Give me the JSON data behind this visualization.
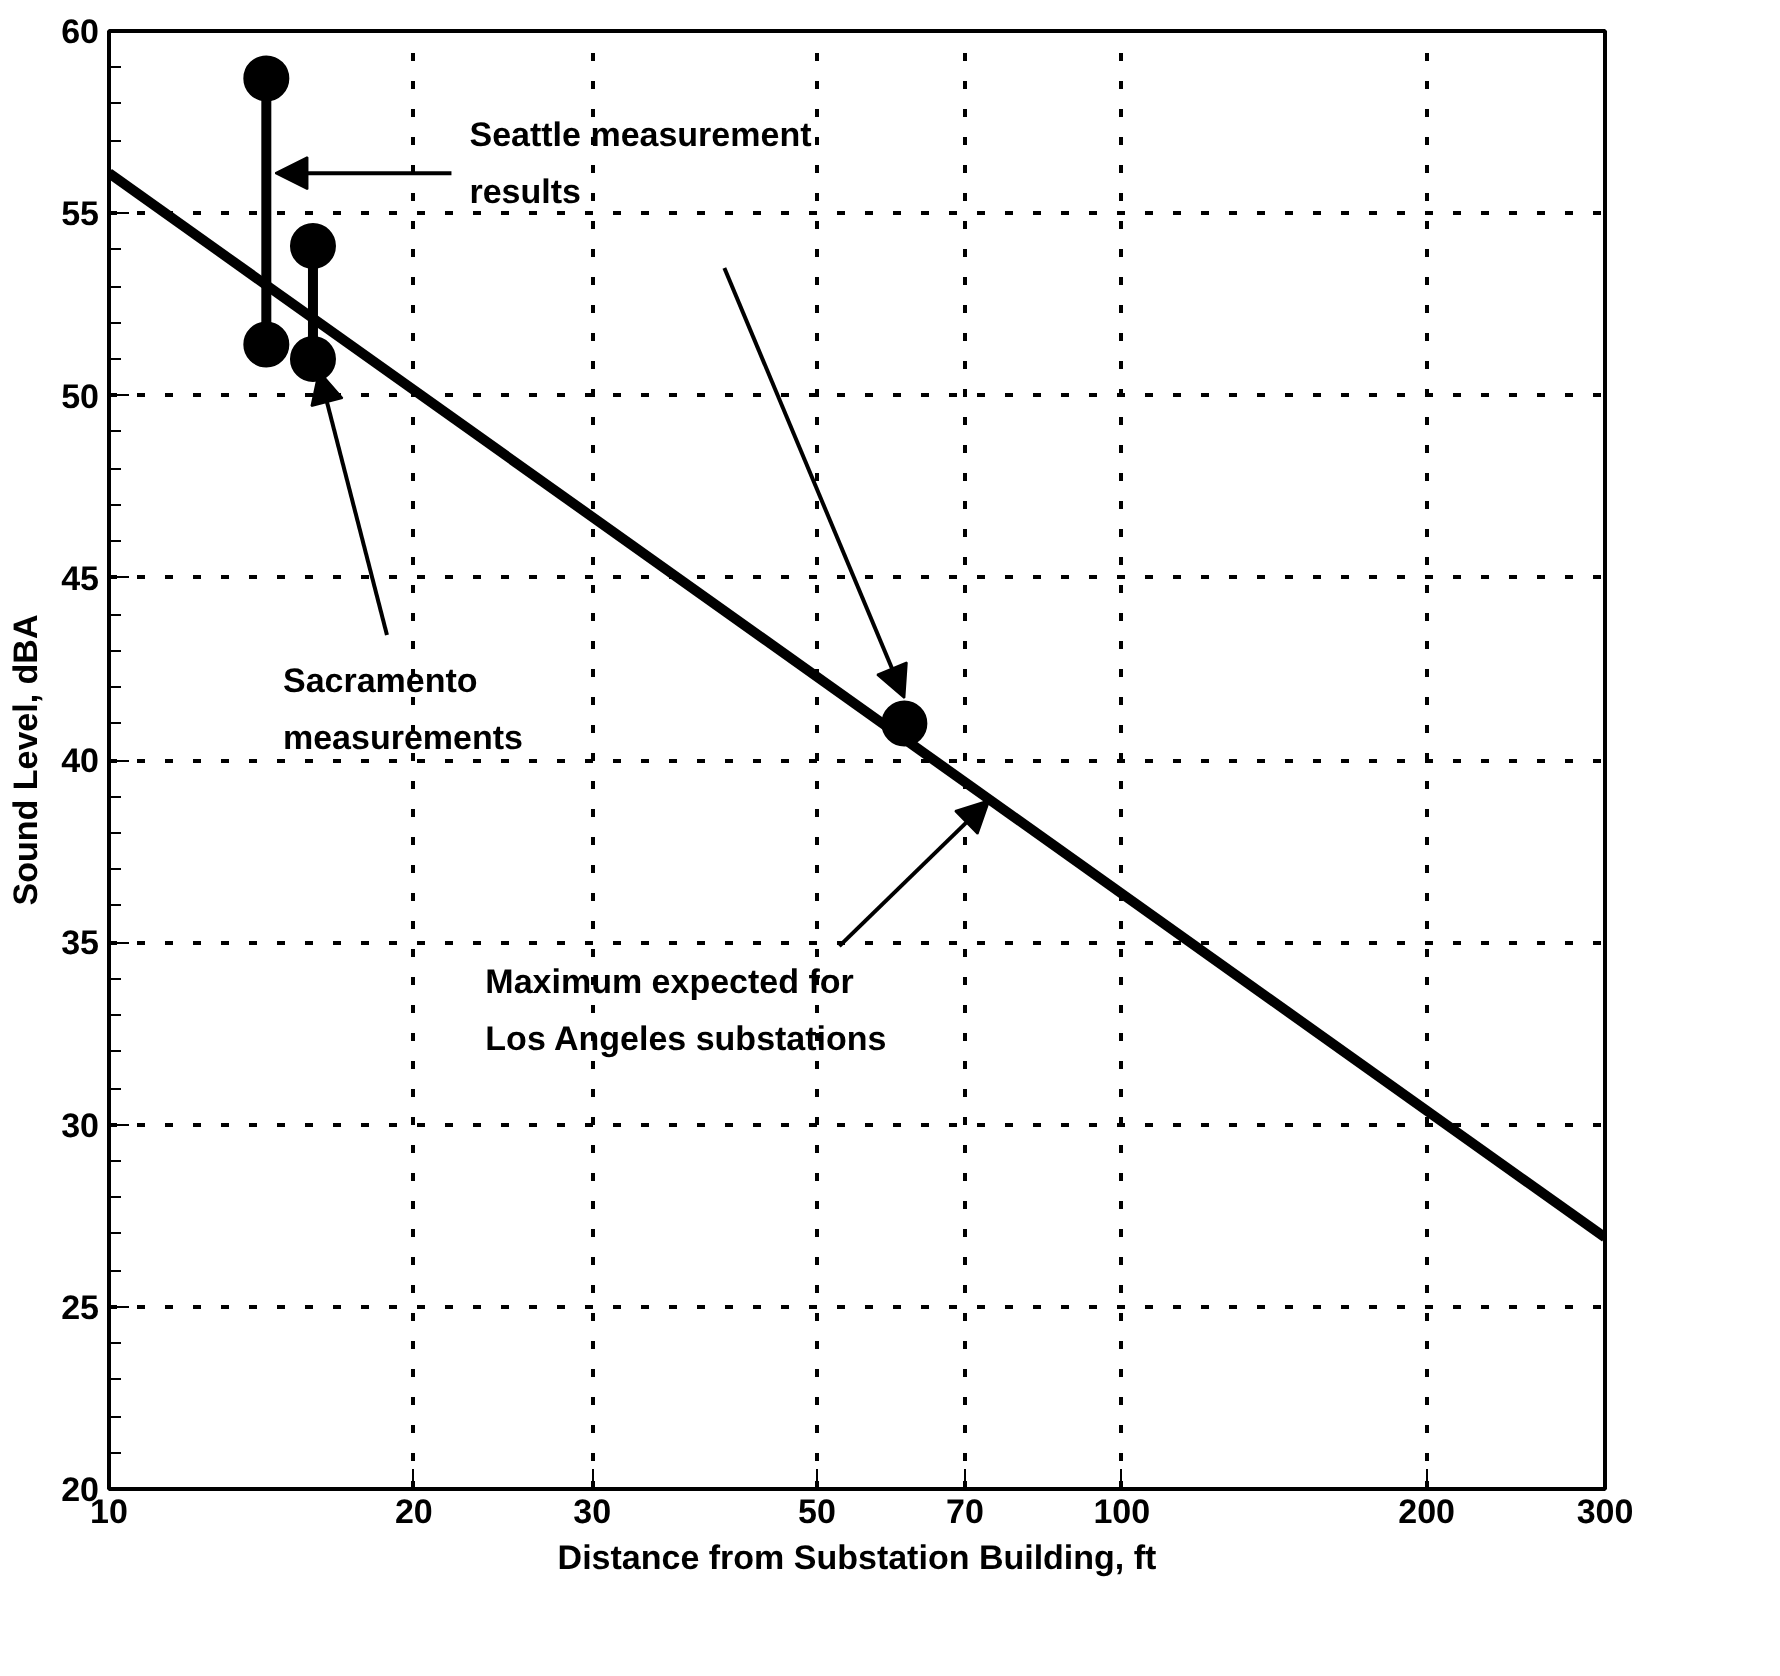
{
  "chart_data": {
    "type": "line",
    "xlabel": "Distance from Substation Building, ft",
    "ylabel": "Sound Level, dBA",
    "log": "x",
    "grid": true,
    "line_style": "solid",
    "xlim": [
      10,
      300
    ],
    "xticks": [
      10,
      20,
      30,
      50,
      70,
      100,
      200,
      300
    ],
    "ylim": [
      20,
      60
    ],
    "yticks": [
      20,
      25,
      30,
      35,
      40,
      45,
      50,
      55,
      60
    ],
    "series": [
      {
        "color": "#000000",
        "marker": "none",
        "x": [
          10,
          300
        ],
        "values": [
          56.1,
          26.9
        ]
      },
      {
        "type": "line",
        "color": "#000000",
        "marker": "circle",
        "x": [
          14.3,
          14.3
        ],
        "values": [
          58.7,
          51.4
        ]
      },
      {
        "type": "line",
        "color": "#000000",
        "marker": "circle",
        "x": [
          15.9,
          15.9
        ],
        "values": [
          54.1,
          51.0
        ]
      },
      {
        "type": "scatter",
        "color": "#000000",
        "marker": "circle",
        "x": [
          61
        ],
        "values": [
          41.0
        ]
      }
    ],
    "annotations": [
      {
        "text": "Seattle measurement\nresults",
        "x": 14.6,
        "y": 56.1
      },
      {
        "text": "Sacramento\nmeasurements",
        "x": 15.9,
        "y": 51.0
      },
      {
        "text": "Maximum expected for\nLos Angeles substations",
        "x": 74,
        "y": 38.9
      }
    ]
  }
}
